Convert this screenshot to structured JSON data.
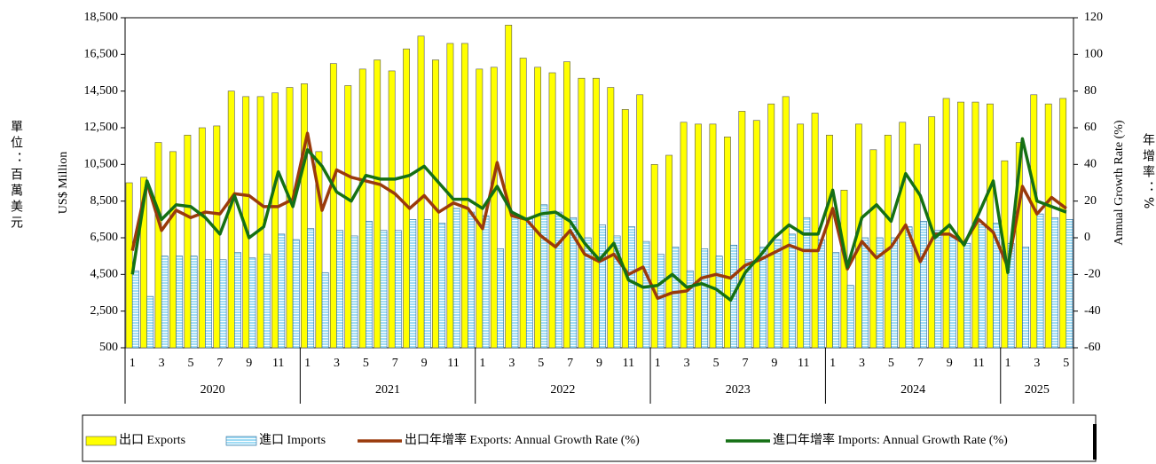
{
  "chart_data": {
    "type": "bar",
    "y_label": "US$ Million",
    "y2_label": "Annual Growth Rate (%)",
    "unit_note_left": "單位：百萬美元",
    "unit_note_right": "年增率：%",
    "categories": [
      "1",
      null,
      "3",
      null,
      "5",
      null,
      "7",
      null,
      "9",
      null,
      "11",
      null,
      "1",
      null,
      "3",
      null,
      "5",
      null,
      "7",
      null,
      "9",
      null,
      "11",
      null,
      "1",
      null,
      "3",
      null,
      "5",
      null,
      "7",
      null,
      "9",
      null,
      "11",
      null,
      "1",
      null,
      "3",
      null,
      "5",
      null,
      "7",
      null,
      "9",
      null,
      "11",
      null,
      "1",
      null,
      "3",
      null,
      "5",
      null,
      "7",
      null,
      "9",
      null,
      "11",
      null,
      "1",
      null,
      "3",
      null,
      "5"
    ],
    "years": [
      "2020",
      "2021",
      "2022",
      "2023",
      "2024",
      "2025"
    ],
    "series": [
      {
        "name": "出口 Exports",
        "color": "#ffff00",
        "kind": "bar",
        "values": [
          9500,
          9800,
          11700,
          11200,
          12100,
          12500,
          12600,
          14500,
          14200,
          14200,
          14400,
          14700,
          14900,
          11200,
          16000,
          14800,
          15700,
          16200,
          15600,
          16800,
          17500,
          16200,
          17100,
          17100,
          15700,
          15800,
          18100,
          16300,
          15800,
          15500,
          16100,
          15200,
          15200,
          14700,
          13500,
          14300,
          10500,
          11000,
          12800,
          12700,
          12700,
          12000,
          13400,
          12900,
          13800,
          14200,
          12700,
          13300,
          12100,
          9100,
          12700,
          11300,
          12100,
          12800,
          11600,
          13100,
          14100,
          13900,
          13900,
          13800,
          10700,
          11700,
          14300,
          13800,
          14100
        ]
      },
      {
        "name": "進口 Imports",
        "color": "#9fdcf5",
        "kind": "bar",
        "values": [
          4700,
          3300,
          5500,
          5500,
          5500,
          5300,
          5300,
          5700,
          5400,
          5600,
          6700,
          6400,
          7000,
          4600,
          6900,
          6600,
          7400,
          6900,
          6900,
          7500,
          7500,
          7300,
          8100,
          7900,
          7700,
          5900,
          7700,
          7600,
          8300,
          7900,
          7600,
          6500,
          7200,
          6600,
          7100,
          6300,
          5600,
          6000,
          4700,
          5900,
          5500,
          6100,
          5300,
          6000,
          6400,
          6700,
          7600,
          6400,
          5700,
          3900,
          6500,
          6500,
          6500,
          7100,
          7400,
          6900,
          6600,
          6200,
          7200,
          7300,
          6200,
          6000,
          7800,
          7600,
          7500
        ]
      },
      {
        "name": "出口年增率 Exports: Annual Growth Rate (%)",
        "color": "#9a3a0c",
        "kind": "line",
        "axis": "y2",
        "values": [
          -7,
          30,
          4,
          15,
          11,
          14,
          13,
          24,
          23,
          17,
          17,
          21,
          57,
          15,
          37,
          33,
          31,
          29,
          24,
          16,
          23,
          14,
          19,
          16,
          5,
          41,
          12,
          10,
          1,
          -5,
          4,
          -9,
          -13,
          -9,
          -20,
          -16,
          -33,
          -30,
          -29,
          -22,
          -20,
          -22,
          -15,
          -12,
          -8,
          -4,
          -7,
          -7,
          16,
          -17,
          -2,
          -11,
          -5,
          7,
          -13,
          2,
          2,
          -3,
          10,
          3,
          -16,
          28,
          13,
          22,
          16
        ]
      },
      {
        "name": "進口年增率 Imports: Annual Growth Rate (%)",
        "color": "#157015",
        "kind": "line",
        "axis": "y2",
        "values": [
          -20,
          31,
          10,
          18,
          17,
          11,
          2,
          23,
          0,
          6,
          36,
          17,
          48,
          39,
          25,
          20,
          34,
          32,
          32,
          34,
          39,
          30,
          21,
          21,
          16,
          28,
          14,
          10,
          13,
          14,
          9,
          -3,
          -12,
          -3,
          -23,
          -27,
          -26,
          -20,
          -27,
          -25,
          -28,
          -34,
          -19,
          -10,
          0,
          7,
          2,
          2,
          26,
          -16,
          11,
          18,
          9,
          35,
          23,
          0,
          7,
          -4,
          13,
          31,
          -19,
          54,
          20,
          17,
          14
        ]
      }
    ],
    "ylim": [
      500,
      18500
    ],
    "yticks": [
      500,
      {
        "value": 2500,
        "label": "2,500"
      },
      {
        "value": 4500,
        "label": "4,500"
      },
      {
        "value": 6500,
        "label": "6,500"
      },
      {
        "value": 8500,
        "label": "8,500"
      },
      {
        "value": 10500,
        "label": "10,500"
      },
      {
        "value": 12500,
        "label": "12,500"
      },
      {
        "value": 14500,
        "label": "14,500"
      },
      {
        "value": 16500,
        "label": "16,500"
      },
      {
        "value": 18500,
        "label": "18,500"
      }
    ],
    "y2lim": [
      -60,
      120
    ],
    "y2ticks": [
      -60,
      -40,
      -20,
      0,
      20,
      40,
      60,
      80,
      100,
      120
    ],
    "grid": false,
    "legend": "bottom"
  }
}
